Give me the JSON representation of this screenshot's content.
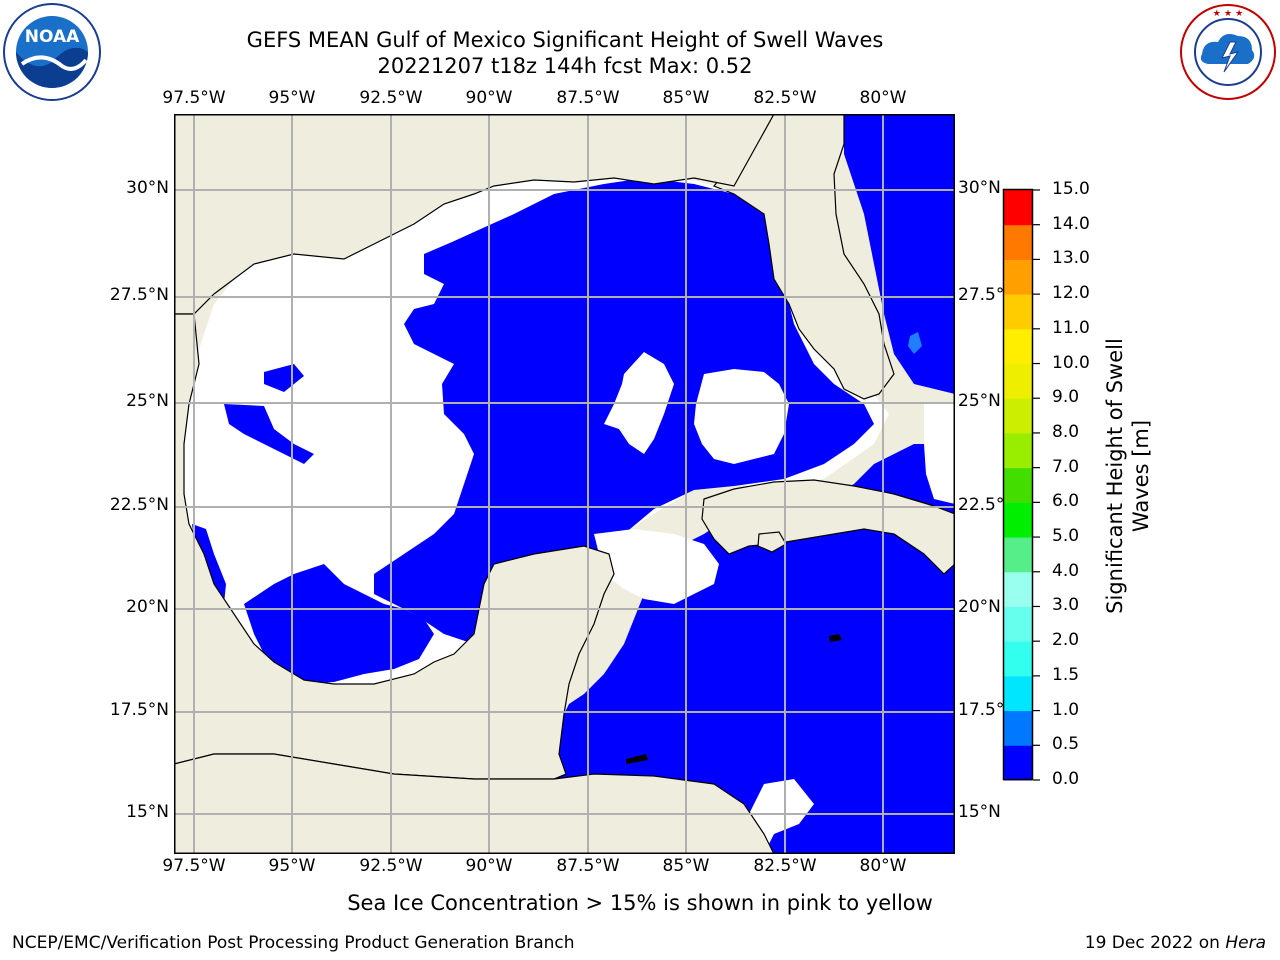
{
  "title": {
    "line1": "GEFS MEAN Gulf of Mexico Significant Height of Swell Waves",
    "line2": "20221207 t18z 144h fcst   Max: 0.52"
  },
  "map": {
    "lon_labels": [
      "97.5°W",
      "95°W",
      "92.5°W",
      "90°W",
      "87.5°W",
      "85°W",
      "82.5°W",
      "80°W"
    ],
    "lat_labels_left": [
      "30°N",
      "27.5°N",
      "25°N",
      "22.5°N",
      "20°N",
      "17.5°N",
      "15°N"
    ],
    "lat_labels_right": [
      "30°N",
      "27.5°N",
      "25°N",
      "22.5°N",
      "20°N",
      "17.5°N",
      "15°N"
    ],
    "colors": {
      "land": "#efedde",
      "no_data": "#ffffff",
      "swell_low": "#0000ff",
      "swell_mid": "#1f7fff",
      "grid": "#b0b0b0",
      "coast": "#000000"
    }
  },
  "colorbar": {
    "label": "Significant Height of Swell Waves [m]",
    "ticks": [
      "0.0",
      "0.5",
      "1.0",
      "1.5",
      "2.0",
      "3.0",
      "4.0",
      "5.0",
      "6.0",
      "7.0",
      "8.0",
      "9.0",
      "10.0",
      "11.0",
      "12.0",
      "13.0",
      "14.0",
      "15.0"
    ],
    "colors": [
      "#0000ff",
      "#0078ff",
      "#00e6ff",
      "#33ffee",
      "#66ffee",
      "#99ffee",
      "#55ee88",
      "#00ee00",
      "#44dd00",
      "#99ee00",
      "#ccee00",
      "#eeee00",
      "#ffee00",
      "#ffcc00",
      "#ffa000",
      "#ff7800",
      "#ff3c00",
      "#ff0000"
    ]
  },
  "note": "Sea Ice Concentration > 15% is shown in pink to yellow",
  "footer": {
    "left": "NCEP/EMC/Verification Post Processing Product Generation Branch",
    "right_date": "19 Dec 2022 on ",
    "right_host": "Hera"
  },
  "logos": {
    "noaa": {
      "text": "NOAA",
      "ring_text": "NATIONAL OCEANIC AND ATMOSPHERIC ADMINISTRATION · U.S. DEPARTMENT OF COMMERCE"
    },
    "nws": {
      "ring_text": "NATIONAL WEATHER SERVICE"
    }
  }
}
